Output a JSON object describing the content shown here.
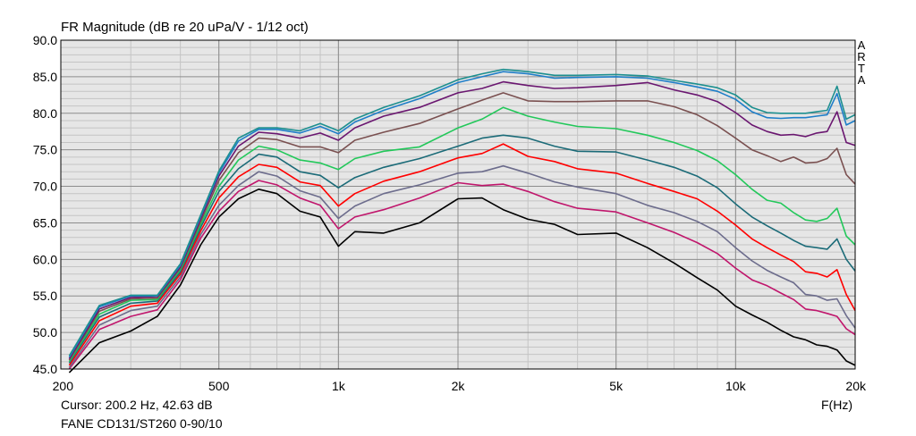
{
  "header": {
    "title": "FR Magnitude (dB re 20 uPa/V - 1/12 oct)"
  },
  "footer": {
    "cursor": "Cursor: 200.2 Hz, 42.63 dB",
    "dut": "FANE CD131/ST260 0-90/10",
    "x_unit": "F(Hz)"
  },
  "brand": {
    "letters": [
      "A",
      "R",
      "T",
      "A"
    ]
  },
  "chart_data": {
    "type": "line",
    "title": "FR Magnitude (dB re 20 uPa/V - 1/12 oct)",
    "xlabel": "F(Hz)",
    "ylabel": "",
    "x_scale": "log",
    "xlim": [
      200,
      20000
    ],
    "ylim": [
      45,
      90
    ],
    "x_ticks": [
      200,
      500,
      1000,
      2000,
      5000,
      10000,
      20000
    ],
    "x_tick_labels": [
      "200",
      "500",
      "1k",
      "2k",
      "5k",
      "10k",
      "20k"
    ],
    "y_ticks": [
      45,
      50,
      55,
      60,
      65,
      70,
      75,
      80,
      85,
      90
    ],
    "y_tick_labels": [
      "45.0",
      "50.0",
      "55.0",
      "60.0",
      "65.0",
      "70.0",
      "75.0",
      "80.0",
      "85.0",
      "90.0"
    ],
    "grid": true,
    "legend": "none",
    "x": [
      210,
      250,
      300,
      350,
      400,
      450,
      500,
      560,
      630,
      700,
      800,
      900,
      1000,
      1100,
      1300,
      1600,
      2000,
      2300,
      2600,
      3000,
      3500,
      4000,
      5000,
      6000,
      7000,
      8000,
      9000,
      10000,
      11000,
      12000,
      13000,
      14000,
      15000,
      16000,
      17000,
      18000,
      19000,
      20000
    ],
    "series": [
      {
        "color": "#000000",
        "values": [
          44.5,
          48.6,
          50.2,
          52.2,
          56.5,
          62.0,
          65.8,
          68.3,
          69.6,
          69.0,
          66.6,
          65.8,
          61.8,
          63.8,
          63.6,
          65.0,
          68.3,
          68.4,
          66.8,
          65.5,
          64.8,
          63.4,
          63.6,
          61.6,
          59.5,
          57.5,
          55.8,
          53.6,
          52.4,
          51.4,
          50.3,
          49.4,
          49.0,
          48.3,
          48.1,
          47.6,
          46.1,
          45.5
        ]
      },
      {
        "color": "#c0166c",
        "values": [
          45.0,
          50.4,
          52.2,
          53.1,
          57.2,
          62.9,
          66.6,
          69.3,
          70.8,
          70.2,
          68.4,
          67.4,
          64.2,
          65.8,
          66.8,
          68.4,
          70.5,
          70.1,
          70.3,
          69.3,
          67.9,
          67.0,
          66.5,
          65.0,
          63.7,
          62.3,
          60.8,
          58.8,
          57.2,
          56.4,
          55.4,
          54.5,
          53.2,
          53.0,
          52.6,
          52.2,
          50.5,
          49.7
        ]
      },
      {
        "color": "#6c6c8c",
        "values": [
          45.2,
          51.0,
          53.0,
          53.6,
          57.6,
          63.4,
          67.4,
          70.1,
          72.0,
          71.4,
          69.4,
          68.5,
          65.6,
          67.3,
          69.0,
          70.2,
          71.8,
          72.0,
          72.8,
          71.8,
          70.6,
          69.9,
          69.0,
          67.4,
          66.4,
          65.2,
          63.8,
          61.6,
          59.8,
          58.5,
          57.6,
          56.8,
          55.2,
          55.0,
          54.4,
          54.6,
          52.3,
          50.6
        ]
      },
      {
        "color": "#ff0000",
        "values": [
          45.5,
          51.6,
          53.6,
          54.0,
          58.0,
          63.9,
          68.4,
          71.3,
          73.0,
          72.6,
          70.6,
          70.1,
          67.3,
          69.0,
          70.7,
          72.0,
          73.9,
          74.5,
          75.8,
          74.1,
          73.4,
          72.4,
          71.8,
          70.4,
          69.3,
          68.3,
          66.6,
          64.7,
          62.8,
          61.6,
          60.6,
          59.7,
          58.3,
          58.1,
          57.6,
          58.6,
          55.2,
          53.0
        ]
      },
      {
        "color": "#1b6b78",
        "values": [
          45.8,
          52.1,
          54.0,
          54.3,
          58.3,
          64.4,
          69.3,
          72.4,
          74.4,
          74.0,
          72.0,
          71.5,
          69.8,
          71.2,
          72.6,
          73.8,
          75.5,
          76.6,
          77.0,
          76.6,
          75.5,
          74.8,
          74.7,
          73.6,
          72.6,
          71.4,
          69.8,
          67.6,
          65.8,
          64.6,
          63.6,
          62.6,
          61.8,
          61.6,
          61.4,
          62.8,
          60.0,
          58.4
        ]
      },
      {
        "color": "#22c85a",
        "values": [
          46.0,
          52.5,
          54.4,
          54.5,
          58.6,
          64.8,
          70.0,
          73.6,
          75.5,
          75.0,
          73.6,
          73.2,
          72.3,
          73.8,
          74.8,
          75.4,
          78.0,
          79.2,
          80.8,
          79.6,
          78.8,
          78.2,
          77.9,
          77.0,
          76.0,
          74.9,
          73.5,
          71.6,
          69.6,
          68.1,
          67.7,
          66.4,
          65.4,
          65.2,
          65.6,
          67.0,
          63.2,
          62.0
        ]
      },
      {
        "color": "#7a5050",
        "values": [
          46.2,
          52.9,
          54.6,
          54.7,
          58.8,
          65.2,
          70.8,
          74.6,
          76.6,
          76.4,
          75.4,
          75.4,
          74.6,
          76.3,
          77.4,
          78.6,
          80.6,
          81.8,
          82.8,
          81.7,
          81.6,
          81.6,
          81.7,
          81.7,
          80.9,
          79.8,
          78.3,
          76.6,
          75.0,
          74.2,
          73.4,
          74.0,
          73.2,
          73.3,
          73.8,
          75.2,
          71.6,
          70.3
        ]
      },
      {
        "color": "#6a1670",
        "values": [
          46.4,
          53.2,
          54.8,
          54.9,
          59.0,
          65.6,
          71.4,
          75.5,
          77.4,
          77.2,
          76.6,
          77.3,
          76.3,
          78.0,
          79.6,
          80.8,
          82.8,
          83.4,
          84.3,
          83.8,
          83.4,
          83.5,
          83.8,
          84.2,
          83.2,
          82.5,
          81.6,
          80.1,
          78.4,
          77.5,
          77.0,
          77.1,
          76.8,
          77.3,
          77.5,
          80.2,
          76.0,
          75.6
        ]
      },
      {
        "color": "#1e7ec8",
        "values": [
          46.6,
          53.5,
          55.0,
          55.0,
          59.2,
          65.9,
          71.8,
          76.2,
          77.8,
          77.8,
          77.3,
          78.2,
          77.2,
          78.8,
          80.4,
          82.0,
          84.2,
          85.0,
          85.7,
          85.4,
          84.8,
          84.9,
          85.0,
          84.8,
          84.2,
          83.6,
          83.0,
          81.9,
          80.2,
          79.4,
          79.3,
          79.4,
          79.4,
          79.6,
          79.8,
          82.7,
          78.4,
          79.0
        ]
      },
      {
        "color": "#1c8f8f",
        "values": [
          46.8,
          53.7,
          55.1,
          55.1,
          59.4,
          66.1,
          72.1,
          76.6,
          78.0,
          78.0,
          77.6,
          78.6,
          77.6,
          79.2,
          80.8,
          82.4,
          84.6,
          85.4,
          86.0,
          85.7,
          85.2,
          85.2,
          85.3,
          85.1,
          84.5,
          84.0,
          83.5,
          82.5,
          80.8,
          80.1,
          80.0,
          80.0,
          80.0,
          80.2,
          80.4,
          83.7,
          79.2,
          79.8
        ]
      }
    ]
  }
}
